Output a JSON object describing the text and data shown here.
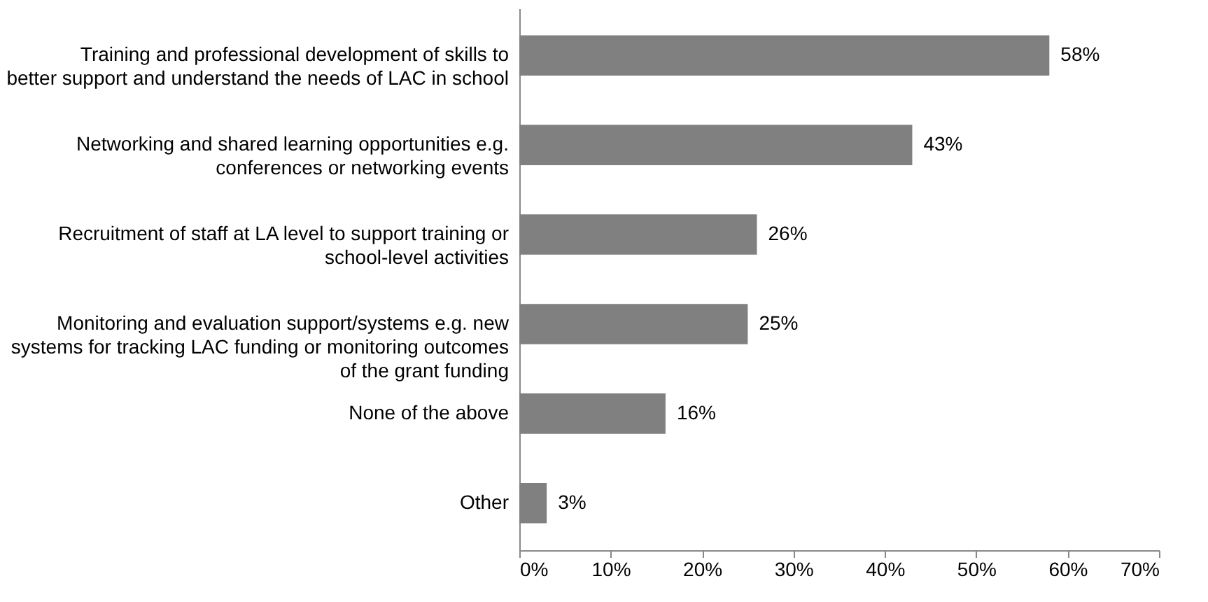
{
  "chart_data": {
    "type": "bar",
    "orientation": "horizontal",
    "categories": [
      "Training and professional development of skills to better support and understand the needs of LAC in school",
      "Networking and shared learning opportunities e.g. conferences or networking events",
      "Recruitment of staff at LA level to support training or school-level activities",
      "Monitoring and evaluation support/systems e.g. new systems for tracking LAC funding or monitoring outcomes of the grant funding",
      "None of the above",
      "Other"
    ],
    "values": [
      58,
      43,
      26,
      25,
      16,
      3
    ],
    "value_labels": [
      "58%",
      "43%",
      "26%",
      "25%",
      "16%",
      "3%"
    ],
    "color": "#808080",
    "xlim": [
      0,
      70
    ],
    "xticks": [
      {
        "value": 0,
        "label": "0%"
      },
      {
        "value": 10,
        "label": "10%"
      },
      {
        "value": 20,
        "label": "20%"
      },
      {
        "value": 30,
        "label": "30%"
      },
      {
        "value": 40,
        "label": "40%"
      },
      {
        "value": 50,
        "label": "50%"
      },
      {
        "value": 60,
        "label": "60%"
      },
      {
        "value": 70,
        "label": "70%"
      }
    ],
    "grid": false
  }
}
